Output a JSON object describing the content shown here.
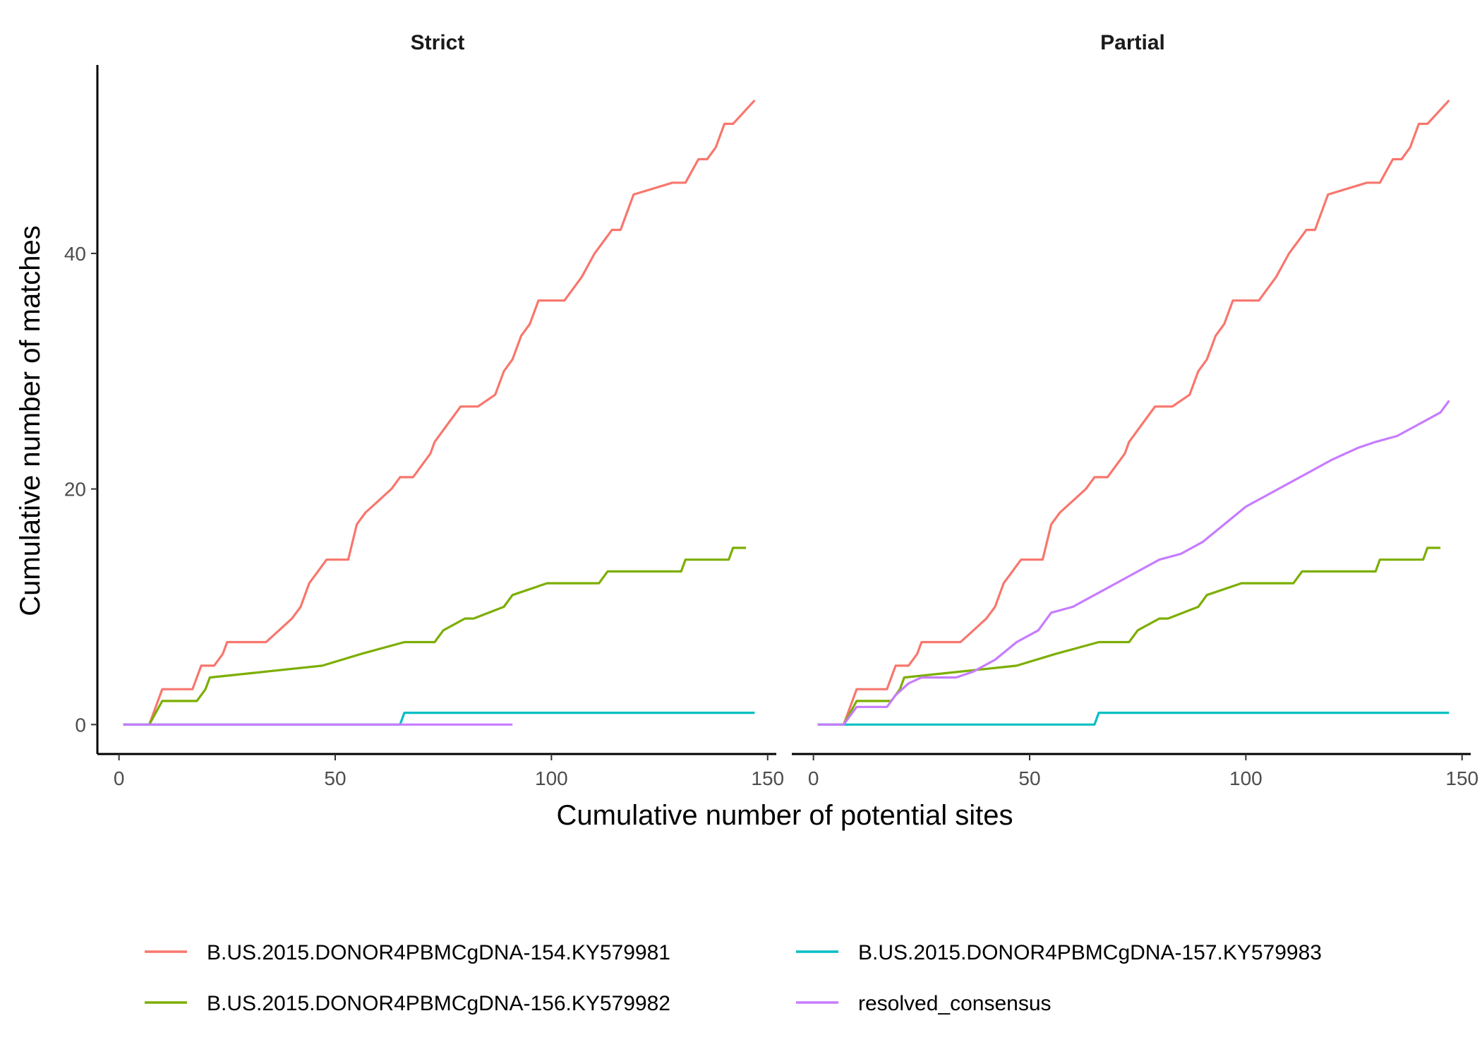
{
  "chart_data": {
    "type": "line",
    "xlabel": "Cumulative number of potential sites",
    "ylabel": "Cumulative number of matches",
    "xlim": [
      -5,
      152
    ],
    "ylim": [
      -2.5,
      56
    ],
    "x_ticks": [
      0,
      50,
      100,
      150
    ],
    "y_ticks": [
      0,
      20,
      40
    ],
    "grid": false,
    "legend_position": "bottom",
    "colors": {
      "B.US.2015.DONOR4PBMCgDNA-154.KY579981": "#F8766D",
      "B.US.2015.DONOR4PBMCgDNA-156.KY579982": "#7CAE00",
      "B.US.2015.DONOR4PBMCgDNA-157.KY579983": "#00BFC4",
      "resolved_consensus": "#C77CFF"
    },
    "legend": [
      "B.US.2015.DONOR4PBMCgDNA-154.KY579981",
      "B.US.2015.DONOR4PBMCgDNA-156.KY579982",
      "B.US.2015.DONOR4PBMCgDNA-157.KY579983",
      "resolved_consensus"
    ],
    "panels": [
      {
        "title": "Strict",
        "series": [
          {
            "name": "B.US.2015.DONOR4PBMCgDNA-154.KY579981",
            "x": [
              1,
              7,
              10,
              17,
              19,
              22,
              24,
              25,
              34,
              37,
              40,
              42,
              44,
              46,
              48,
              53,
              55,
              57,
              60,
              63,
              65,
              66,
              68,
              72,
              73,
              75,
              77,
              79,
              83,
              87,
              89,
              91,
              93,
              95,
              97,
              103,
              107,
              110,
              112,
              114,
              116,
              119,
              128,
              131,
              134,
              136,
              138,
              140,
              142,
              147
            ],
            "y": [
              0,
              0,
              3,
              3,
              5,
              5,
              6,
              7,
              7,
              8,
              9,
              10,
              12,
              13,
              14,
              14,
              17,
              18,
              19,
              20,
              21,
              21,
              21,
              23,
              24,
              25,
              26,
              27,
              27,
              28,
              30,
              31,
              33,
              34,
              36,
              36,
              38,
              40,
              41,
              42,
              42,
              45,
              46,
              46,
              48,
              48,
              49,
              51,
              51,
              53
            ]
          },
          {
            "name": "B.US.2015.DONOR4PBMCgDNA-156.KY579982",
            "x": [
              1,
              7,
              10,
              18,
              20,
              21,
              47,
              56,
              66,
              73,
              75,
              80,
              82,
              89,
              91,
              99,
              111,
              113,
              130,
              131,
              141,
              142,
              145
            ],
            "y": [
              0,
              0,
              2,
              2,
              3,
              4,
              5,
              6,
              7,
              7,
              8,
              9,
              9,
              10,
              11,
              12,
              12,
              13,
              13,
              14,
              14,
              15,
              15
            ]
          },
          {
            "name": "B.US.2015.DONOR4PBMCgDNA-157.KY579983",
            "x": [
              1,
              65,
              66,
              147
            ],
            "y": [
              0,
              0,
              1,
              1
            ]
          },
          {
            "name": "resolved_consensus",
            "x": [
              1,
              91
            ],
            "y": [
              0,
              0
            ]
          }
        ]
      },
      {
        "title": "Partial",
        "series": [
          {
            "name": "B.US.2015.DONOR4PBMCgDNA-154.KY579981",
            "x": [
              1,
              7,
              10,
              17,
              19,
              22,
              24,
              25,
              34,
              37,
              40,
              42,
              44,
              46,
              48,
              53,
              55,
              57,
              60,
              63,
              65,
              66,
              68,
              72,
              73,
              75,
              77,
              79,
              83,
              87,
              89,
              91,
              93,
              95,
              97,
              103,
              107,
              110,
              112,
              114,
              116,
              119,
              128,
              131,
              134,
              136,
              138,
              140,
              142,
              147
            ],
            "y": [
              0,
              0,
              3,
              3,
              5,
              5,
              6,
              7,
              7,
              8,
              9,
              10,
              12,
              13,
              14,
              14,
              17,
              18,
              19,
              20,
              21,
              21,
              21,
              23,
              24,
              25,
              26,
              27,
              27,
              28,
              30,
              31,
              33,
              34,
              36,
              36,
              38,
              40,
              41,
              42,
              42,
              45,
              46,
              46,
              48,
              48,
              49,
              51,
              51,
              53
            ]
          },
          {
            "name": "B.US.2015.DONOR4PBMCgDNA-156.KY579982",
            "x": [
              1,
              7,
              10,
              18,
              20,
              21,
              47,
              56,
              66,
              73,
              75,
              80,
              82,
              89,
              91,
              99,
              111,
              113,
              130,
              131,
              141,
              142,
              145
            ],
            "y": [
              0,
              0,
              2,
              2,
              3,
              4,
              5,
              6,
              7,
              7,
              8,
              9,
              9,
              10,
              11,
              12,
              12,
              13,
              13,
              14,
              14,
              15,
              15
            ]
          },
          {
            "name": "B.US.2015.DONOR4PBMCgDNA-157.KY579983",
            "x": [
              1,
              65,
              66,
              147
            ],
            "y": [
              0,
              0,
              1,
              1
            ]
          },
          {
            "name": "resolved_consensus",
            "x": [
              1,
              7,
              10,
              17,
              19,
              22,
              25,
              33,
              37,
              42,
              47,
              52,
              55,
              60,
              65,
              70,
              75,
              80,
              85,
              90,
              95,
              100,
              105,
              110,
              115,
              120,
              126,
              130,
              135,
              140,
              145,
              147
            ],
            "y": [
              0,
              0,
              1.5,
              1.5,
              2.5,
              3.5,
              4,
              4,
              4.5,
              5.5,
              7,
              8,
              9.5,
              10,
              11,
              12,
              13,
              14,
              14.5,
              15.5,
              17,
              18.5,
              19.5,
              20.5,
              21.5,
              22.5,
              23.5,
              24,
              24.5,
              25.5,
              26.5,
              27.5
            ]
          }
        ]
      }
    ]
  }
}
